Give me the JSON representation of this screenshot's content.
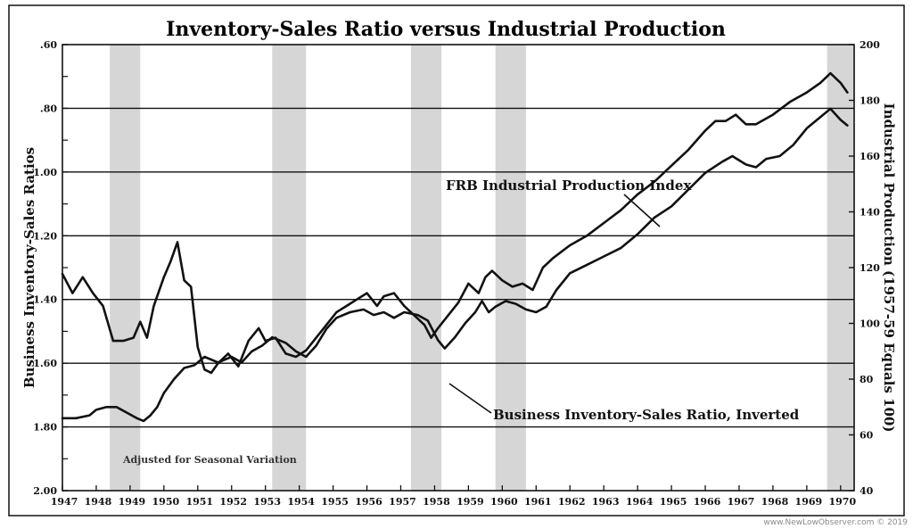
{
  "chart_data": {
    "type": "line",
    "title": "Inventory-Sales Ratio versus Industrial Production",
    "ylabel_left": "Business Inventory-Sales Ratios",
    "ylabel_right": "Industrial Production (1957-59 Equals 100)",
    "note": "Adjusted for Seasonal Variation",
    "x_range": [
      1947,
      1970.4
    ],
    "x_ticks": [
      "1947",
      "1948",
      "1949",
      "1950",
      "1951",
      "1952",
      "1953",
      "1954",
      "1955",
      "1956",
      "1957",
      "1958",
      "1959",
      "1960",
      "1961",
      "1962",
      "1963",
      "1964",
      "1965",
      "1966",
      "1967",
      "1968",
      "1969",
      "1970"
    ],
    "left_axis": {
      "range": [
        2.0,
        0.6
      ],
      "inverted": true,
      "ticks": [
        ".60",
        ".80",
        "1.00",
        "1.20",
        "1.40",
        "1.60",
        "1.80",
        "2.00"
      ]
    },
    "right_axis": {
      "range": [
        40,
        200
      ],
      "ticks": [
        "40",
        "60",
        "80",
        "100",
        "120",
        "140",
        "160",
        "180",
        "200"
      ]
    },
    "recessions": [
      [
        1948.4,
        1949.3
      ],
      [
        1953.2,
        1954.2
      ],
      [
        1957.3,
        1958.2
      ],
      [
        1959.8,
        1960.7
      ],
      [
        1969.6,
        1970.4
      ]
    ],
    "series": [
      {
        "name": "FRB Industrial Production Index",
        "label": "FRB Industrial Production Index",
        "axis": "right",
        "x": [
          1947,
          1947.4,
          1947.8,
          1948,
          1948.3,
          1948.6,
          1948.9,
          1949.2,
          1949.4,
          1949.6,
          1949.8,
          1950,
          1950.3,
          1950.6,
          1950.9,
          1951.2,
          1951.6,
          1952,
          1952.3,
          1952.6,
          1952.9,
          1953.2,
          1953.6,
          1953.9,
          1954.2,
          1954.5,
          1954.8,
          1955.1,
          1955.5,
          1955.9,
          1956.2,
          1956.5,
          1956.8,
          1957.1,
          1957.5,
          1957.8,
          1958.1,
          1958.3,
          1958.6,
          1958.9,
          1959.2,
          1959.4,
          1959.6,
          1959.8,
          1960.1,
          1960.4,
          1960.7,
          1961,
          1961.3,
          1961.6,
          1962,
          1962.5,
          1963,
          1963.5,
          1964,
          1964.5,
          1965,
          1965.5,
          1966,
          1966.5,
          1966.8,
          1967.2,
          1967.5,
          1967.8,
          1968.2,
          1968.6,
          1969,
          1969.4,
          1969.7,
          1970,
          1970.2
        ],
        "y": [
          66,
          66,
          67,
          69,
          70,
          70,
          68,
          66,
          65,
          67,
          70,
          75,
          80,
          84,
          85,
          88,
          86,
          88,
          86,
          90,
          92,
          95,
          93,
          90,
          88,
          92,
          98,
          102,
          104,
          105,
          103,
          104,
          102,
          104,
          103,
          101,
          94,
          91,
          95,
          100,
          104,
          108,
          104,
          106,
          108,
          107,
          105,
          104,
          106,
          112,
          118,
          121,
          124,
          127,
          132,
          138,
          142,
          148,
          154,
          158,
          160,
          157,
          156,
          159,
          160,
          164,
          170,
          174,
          177,
          173,
          171
        ]
      },
      {
        "name": "Business Inventory-Sales Ratio, Inverted",
        "label": "Business Inventory-Sales Ratio, Inverted",
        "axis": "left",
        "x": [
          1947,
          1947.3,
          1947.6,
          1947.9,
          1948.2,
          1948.5,
          1948.8,
          1949.1,
          1949.3,
          1949.5,
          1949.7,
          1950,
          1950.2,
          1950.4,
          1950.5,
          1950.6,
          1950.8,
          1951,
          1951.2,
          1951.4,
          1951.6,
          1951.9,
          1952.2,
          1952.5,
          1952.8,
          1953,
          1953.3,
          1953.6,
          1953.9,
          1954.2,
          1954.5,
          1954.8,
          1955.1,
          1955.4,
          1955.7,
          1956,
          1956.3,
          1956.5,
          1956.8,
          1957.1,
          1957.4,
          1957.7,
          1957.9,
          1958.1,
          1958.4,
          1958.7,
          1959,
          1959.3,
          1959.5,
          1959.7,
          1960,
          1960.3,
          1960.6,
          1960.9,
          1961.2,
          1961.5,
          1962,
          1962.5,
          1963,
          1963.5,
          1964,
          1964.5,
          1965,
          1965.5,
          1966,
          1966.3,
          1966.6,
          1966.9,
          1967.2,
          1967.5,
          1968,
          1968.5,
          1969,
          1969.4,
          1969.7,
          1970,
          1970.2
        ],
        "y": [
          1.32,
          1.38,
          1.33,
          1.38,
          1.42,
          1.53,
          1.53,
          1.52,
          1.47,
          1.52,
          1.42,
          1.33,
          1.28,
          1.22,
          1.28,
          1.34,
          1.36,
          1.55,
          1.62,
          1.63,
          1.6,
          1.57,
          1.61,
          1.53,
          1.49,
          1.53,
          1.52,
          1.57,
          1.58,
          1.56,
          1.52,
          1.48,
          1.44,
          1.42,
          1.4,
          1.38,
          1.42,
          1.39,
          1.38,
          1.42,
          1.45,
          1.48,
          1.52,
          1.49,
          1.45,
          1.41,
          1.35,
          1.38,
          1.33,
          1.31,
          1.34,
          1.36,
          1.35,
          1.37,
          1.3,
          1.27,
          1.23,
          1.2,
          1.16,
          1.12,
          1.07,
          1.03,
          0.98,
          0.93,
          0.87,
          0.84,
          0.84,
          0.82,
          0.85,
          0.85,
          0.82,
          0.78,
          0.75,
          0.72,
          0.69,
          0.72,
          0.75
        ]
      }
    ]
  }
}
